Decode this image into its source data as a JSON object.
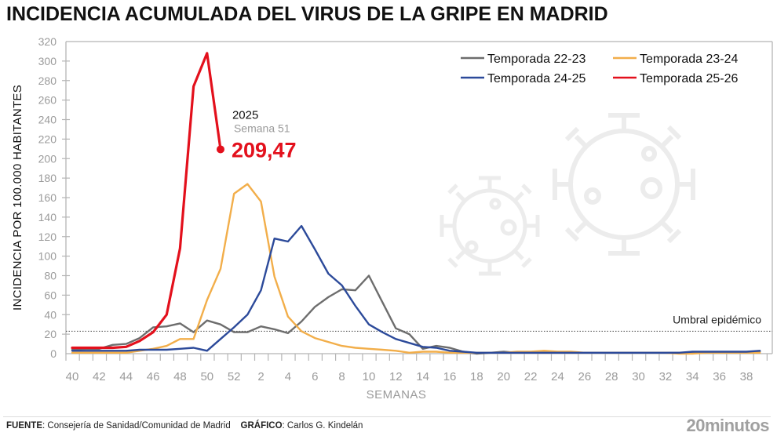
{
  "title": "INCIDENCIA ACUMULADA DEL VIRUS DE LA GRIPE EN MADRID",
  "footer": {
    "source_label": "FUENTE",
    "source_text": ": Consejería de Sanidad/Comunidad de Madrid",
    "graphic_label": "GRÁFICO",
    "graphic_text": ": Carlos G. Kindelán",
    "brand": "20minutos"
  },
  "annotation": {
    "year": "2025",
    "week": "Semana 51",
    "value": "209,47"
  },
  "chart_data": {
    "type": "line",
    "title": "INCIDENCIA ACUMULADA DEL VIRUS DE LA GRIPE EN MADRID",
    "xlabel": "SEMANAS",
    "ylabel": "INCIDENCIA POR 100.000 HABITANTES",
    "ylim": [
      0,
      320
    ],
    "yticks": [
      0,
      20,
      40,
      60,
      80,
      100,
      120,
      140,
      160,
      180,
      200,
      220,
      240,
      260,
      280,
      300,
      320
    ],
    "x": [
      "40",
      "41",
      "42",
      "43",
      "44",
      "45",
      "46",
      "47",
      "48",
      "49",
      "50",
      "51",
      "52",
      "1",
      "2",
      "3",
      "4",
      "5",
      "6",
      "7",
      "8",
      "9",
      "10",
      "11",
      "12",
      "13",
      "14",
      "15",
      "16",
      "17",
      "18",
      "19",
      "20",
      "21",
      "22",
      "23",
      "24",
      "25",
      "26",
      "27",
      "28",
      "29",
      "30",
      "31",
      "32",
      "33",
      "34",
      "35",
      "36",
      "37",
      "38",
      "39"
    ],
    "xtick_labels": [
      "40",
      "42",
      "44",
      "46",
      "48",
      "50",
      "52",
      "2",
      "4",
      "6",
      "8",
      "10",
      "12",
      "14",
      "16",
      "18",
      "20",
      "22",
      "24",
      "26",
      "28",
      "30",
      "32",
      "34",
      "36",
      "38"
    ],
    "threshold": {
      "label": "Umbral epidémico",
      "value": 23
    },
    "legend_position": "top-right",
    "series": [
      {
        "name": "Temporada 22-23",
        "color": "#6d6d6d",
        "values": [
          4,
          5,
          5,
          9,
          10,
          16,
          27,
          28,
          31,
          22,
          34,
          30,
          22,
          22,
          28,
          25,
          21,
          33,
          48,
          58,
          66,
          65,
          80,
          53,
          26,
          20,
          5,
          8,
          6,
          2,
          0,
          1,
          2,
          1,
          1,
          1,
          1,
          1,
          1,
          1,
          1,
          1,
          1,
          1,
          1,
          1,
          1,
          1,
          1,
          1,
          1,
          2
        ]
      },
      {
        "name": "Temporada 23-24",
        "color": "#f2ae4a",
        "values": [
          1,
          1,
          1,
          1,
          1,
          3,
          5,
          8,
          15,
          15,
          55,
          87,
          164,
          174,
          156,
          79,
          38,
          23,
          16,
          12,
          8,
          6,
          5,
          4,
          3,
          1,
          2,
          2,
          1,
          1,
          1,
          1,
          1,
          2,
          2,
          3,
          2,
          2,
          1,
          1,
          1,
          1,
          1,
          1,
          1,
          0,
          0,
          1,
          1,
          1,
          1,
          1
        ]
      },
      {
        "name": "Temporada 24-25",
        "color": "#2c4a9a",
        "values": [
          3,
          3,
          3,
          3,
          3,
          4,
          4,
          4,
          5,
          6,
          3,
          15,
          27,
          40,
          65,
          118,
          115,
          131,
          107,
          82,
          70,
          49,
          30,
          22,
          15,
          11,
          7,
          6,
          3,
          2,
          1,
          1,
          1,
          1,
          1,
          1,
          1,
          1,
          1,
          1,
          1,
          1,
          1,
          1,
          1,
          1,
          2,
          2,
          2,
          2,
          2,
          3
        ]
      },
      {
        "name": "Temporada 25-26",
        "color": "#e3101c",
        "values": [
          6,
          6,
          6,
          6,
          7,
          13,
          22,
          40,
          108,
          274,
          308,
          209.47
        ]
      }
    ]
  }
}
